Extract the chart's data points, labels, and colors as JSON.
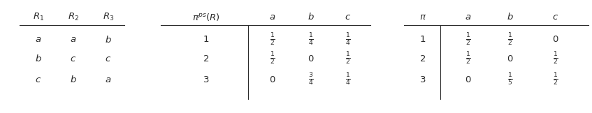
{
  "left_table": {
    "headers": [
      "$R_1$",
      "$R_2$",
      "$R_3$"
    ],
    "rows": [
      [
        "$a$",
        "$a$",
        "$b$"
      ],
      [
        "$b$",
        "$c$",
        "$c$"
      ],
      [
        "$c$",
        "$b$",
        "$a$"
      ]
    ]
  },
  "middle_table": {
    "col0_header": "$\\pi^{ps}(R)$",
    "headers": [
      "$a$",
      "$b$",
      "$c$"
    ],
    "rows": [
      [
        "1",
        "$\\frac{1}{2}$",
        "$\\frac{1}{4}$",
        "$\\frac{1}{4}$"
      ],
      [
        "2",
        "$\\frac{1}{2}$",
        "$0$",
        "$\\frac{1}{2}$"
      ],
      [
        "3",
        "$0$",
        "$\\frac{3}{4}$",
        "$\\frac{1}{4}$"
      ]
    ]
  },
  "right_table": {
    "col0_header": "$\\pi$",
    "headers": [
      "$a$",
      "$b$",
      "$c$"
    ],
    "rows": [
      [
        "1",
        "$\\frac{1}{2}$",
        "$\\frac{1}{2}$",
        "$0$"
      ],
      [
        "2",
        "$\\frac{1}{2}$",
        "$0$",
        "$\\frac{1}{2}$"
      ],
      [
        "3",
        "$0$",
        "$\\frac{1}{5}$",
        "$\\frac{1}{2}$"
      ]
    ]
  },
  "bg_color": "#ffffff",
  "text_color": "#2b2b2b",
  "fontsize": 9.5,
  "figsize": [
    8.47,
    1.62
  ],
  "dpi": 100
}
